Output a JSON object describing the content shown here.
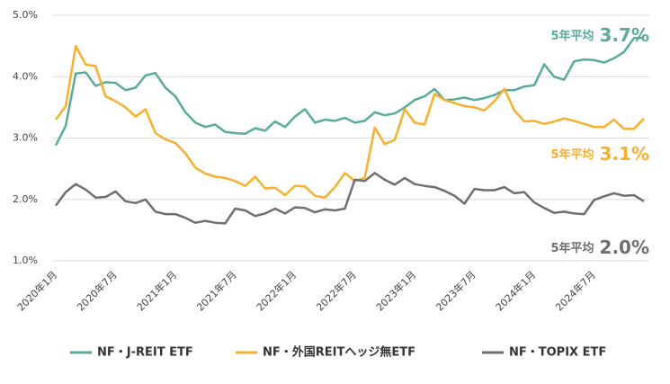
{
  "chart_data": {
    "type": "line",
    "categories": [
      "2020年1月",
      null,
      null,
      null,
      null,
      null,
      "2020年7月",
      null,
      null,
      null,
      null,
      null,
      "2021年1月",
      null,
      null,
      null,
      null,
      null,
      "2021年7月",
      null,
      null,
      null,
      null,
      null,
      "2022年1月",
      null,
      null,
      null,
      null,
      null,
      "2022年7月",
      null,
      null,
      null,
      null,
      null,
      "2023年1月",
      null,
      null,
      null,
      null,
      null,
      "2023年7月",
      null,
      null,
      null,
      null,
      null,
      "2024年1月",
      null,
      null,
      null,
      null,
      null,
      "2024年7月",
      null,
      null,
      null,
      null,
      null
    ],
    "series": [
      {
        "name": "NF・J-REIT ETF",
        "color": "#5aab9a",
        "values": [
          2.88,
          3.2,
          4.05,
          4.07,
          3.85,
          3.91,
          3.9,
          3.78,
          3.82,
          4.02,
          4.06,
          3.82,
          3.68,
          3.42,
          3.25,
          3.18,
          3.22,
          3.1,
          3.08,
          3.07,
          3.16,
          3.12,
          3.27,
          3.18,
          3.35,
          3.47,
          3.25,
          3.3,
          3.28,
          3.33,
          3.25,
          3.28,
          3.42,
          3.37,
          3.4,
          3.5,
          3.62,
          3.68,
          3.8,
          3.62,
          3.63,
          3.66,
          3.62,
          3.65,
          3.7,
          3.78,
          3.78,
          3.84,
          3.86,
          4.2,
          4.0,
          3.95,
          4.25,
          4.28,
          4.27,
          4.23,
          4.3,
          4.4,
          4.63,
          4.63
        ]
      },
      {
        "name": "NF・外国REITヘッジ無ETF",
        "color": "#f5b030",
        "values": [
          3.3,
          3.52,
          4.5,
          4.2,
          4.17,
          3.68,
          3.6,
          3.5,
          3.35,
          3.47,
          3.08,
          2.98,
          2.92,
          2.75,
          2.52,
          2.42,
          2.37,
          2.35,
          2.3,
          2.22,
          2.37,
          2.18,
          2.19,
          2.07,
          2.22,
          2.21,
          2.06,
          2.03,
          2.2,
          2.43,
          2.3,
          2.35,
          3.17,
          2.9,
          2.97,
          3.47,
          3.25,
          3.22,
          3.72,
          3.62,
          3.57,
          3.52,
          3.5,
          3.45,
          3.6,
          3.8,
          3.45,
          3.27,
          3.28,
          3.23,
          3.27,
          3.32,
          3.28,
          3.23,
          3.18,
          3.18,
          3.3,
          3.15,
          3.15,
          3.32
        ]
      },
      {
        "name": "NF・TOPIX ETF",
        "color": "#6f6f6f",
        "values": [
          1.9,
          2.12,
          2.25,
          2.16,
          2.03,
          2.04,
          2.13,
          1.97,
          1.94,
          2.0,
          1.8,
          1.76,
          1.76,
          1.7,
          1.62,
          1.65,
          1.62,
          1.61,
          1.85,
          1.82,
          1.73,
          1.77,
          1.85,
          1.77,
          1.87,
          1.86,
          1.79,
          1.84,
          1.82,
          1.85,
          2.32,
          2.3,
          2.43,
          2.32,
          2.24,
          2.35,
          2.25,
          2.22,
          2.2,
          2.14,
          2.06,
          1.93,
          2.17,
          2.15,
          2.15,
          2.2,
          2.1,
          2.12,
          1.95,
          1.86,
          1.78,
          1.8,
          1.77,
          1.76,
          1.99,
          2.05,
          2.1,
          2.06,
          2.07,
          1.97
        ]
      }
    ],
    "ylim": [
      1,
      5
    ],
    "yticks": [
      {
        "value": 1,
        "label": "1.0%"
      },
      {
        "value": 2,
        "label": "2.0%"
      },
      {
        "value": 3,
        "label": "3.0%"
      },
      {
        "value": 4,
        "label": "4.0%"
      },
      {
        "value": 5,
        "label": "5.0%"
      }
    ],
    "grid": true,
    "legend": "bottom",
    "annotations": [
      {
        "text": "5年平均",
        "value": 3.7,
        "value_label": "3.7%",
        "color": "#5aab9a"
      },
      {
        "text": "5年平均",
        "value": 3.1,
        "value_label": "3.1%",
        "color": "#f5b030"
      },
      {
        "text": "5年平均",
        "value": 2.0,
        "value_label": "2.0%",
        "color": "#6f6f6f"
      }
    ]
  }
}
